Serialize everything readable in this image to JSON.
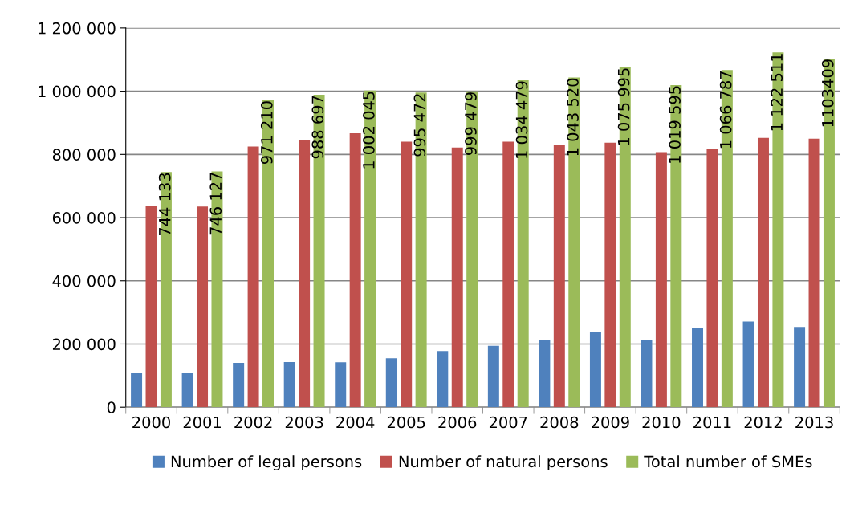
{
  "chart_data": {
    "type": "bar",
    "categories": [
      "2000",
      "2001",
      "2002",
      "2003",
      "2004",
      "2005",
      "2006",
      "2007",
      "2008",
      "2009",
      "2010",
      "2011",
      "2012",
      "2013"
    ],
    "series": [
      {
        "name": "Number of legal persons",
        "color": "#4f81bd",
        "values": [
          107000,
          110000,
          140000,
          143000,
          142000,
          155000,
          178000,
          194000,
          214000,
          237000,
          213000,
          251000,
          271000,
          254000
        ]
      },
      {
        "name": "Number of natural persons",
        "color": "#c0504d",
        "values": [
          636000,
          635000,
          825000,
          845000,
          867000,
          840000,
          822000,
          840000,
          829000,
          837000,
          807000,
          816000,
          852000,
          850000
        ]
      },
      {
        "name": "Total number of SMEs",
        "color": "#9bbb59",
        "values": [
          744133,
          746127,
          971210,
          988697,
          1002045,
          995472,
          999479,
          1034479,
          1043520,
          1075995,
          1019595,
          1066787,
          1122511,
          1103409
        ],
        "value_labels": [
          "744 133",
          "746 127",
          "971 210",
          "988 697",
          "1 002 045",
          "995 472",
          "999 479",
          "1 034 479",
          "1 043 520",
          "1 075 995",
          "1 019 595",
          "1 066 787",
          "1 122 511",
          "1103409"
        ]
      }
    ],
    "ylim": [
      0,
      1200000
    ],
    "yticks": [
      {
        "value": 0,
        "label": "0"
      },
      {
        "value": 200000,
        "label": "200 000"
      },
      {
        "value": 400000,
        "label": "400 000"
      },
      {
        "value": 600000,
        "label": "600 000"
      },
      {
        "value": 800000,
        "label": "800 000"
      },
      {
        "value": 1000000,
        "label": "1 000 000"
      },
      {
        "value": 1200000,
        "label": "1 200 000"
      }
    ],
    "grid": "y",
    "legend": "bottom"
  }
}
